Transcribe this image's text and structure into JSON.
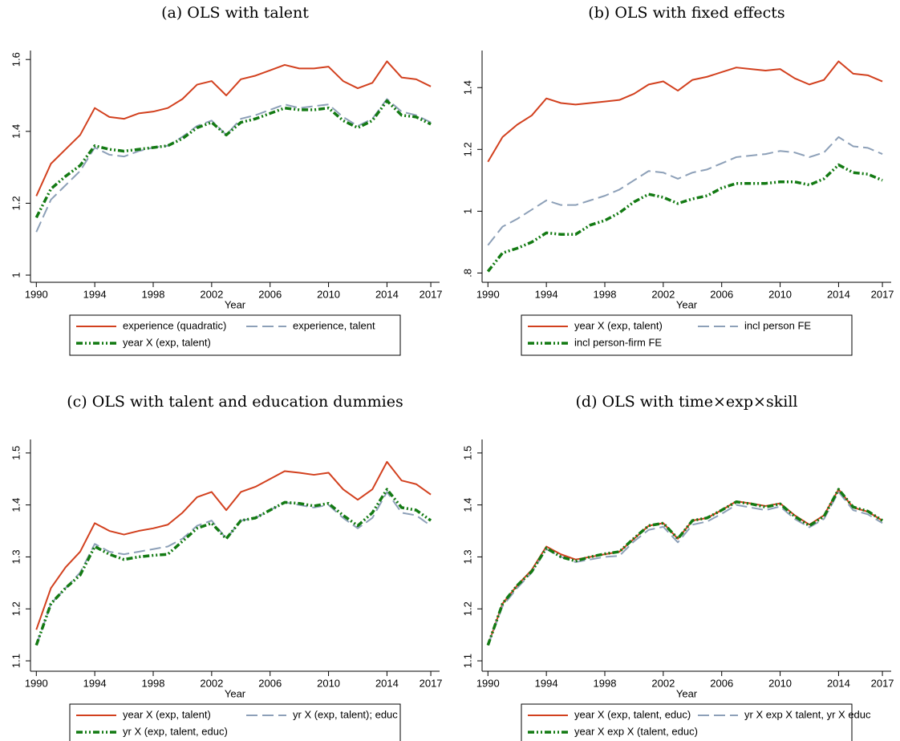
{
  "chart_data": [
    {
      "type": "line",
      "title": "(a) OLS with talent",
      "xlabel": "Year",
      "x": [
        1990,
        1991,
        1992,
        1993,
        1994,
        1995,
        1996,
        1997,
        1998,
        1999,
        2000,
        2001,
        2002,
        2003,
        2004,
        2005,
        2006,
        2007,
        2008,
        2009,
        2010,
        2011,
        2012,
        2013,
        2014,
        2015,
        2016,
        2017
      ],
      "xlim": [
        1989.6,
        2017.6
      ],
      "xticks": [
        1990,
        1994,
        1998,
        2002,
        2006,
        2010,
        2014,
        2017
      ],
      "ylim": [
        0.98,
        1.625
      ],
      "yticks": [
        1,
        1.2,
        1.4,
        1.6
      ],
      "series": [
        {
          "name": "experience (quadratic)",
          "color": "#d2401e",
          "values": [
            1.22,
            1.31,
            1.35,
            1.39,
            1.465,
            1.44,
            1.435,
            1.45,
            1.455,
            1.465,
            1.49,
            1.53,
            1.54,
            1.5,
            1.545,
            1.555,
            1.57,
            1.585,
            1.575,
            1.575,
            1.58,
            1.54,
            1.52,
            1.535,
            1.595,
            1.55,
            1.545,
            1.525
          ]
        },
        {
          "name": "experience, talent",
          "color": "#8da0b8",
          "values": [
            1.12,
            1.21,
            1.25,
            1.29,
            1.355,
            1.335,
            1.33,
            1.345,
            1.355,
            1.36,
            1.385,
            1.415,
            1.43,
            1.39,
            1.435,
            1.445,
            1.46,
            1.475,
            1.465,
            1.47,
            1.475,
            1.44,
            1.415,
            1.435,
            1.49,
            1.455,
            1.445,
            1.425
          ]
        },
        {
          "name": "year X (exp, talent)",
          "color": "#137a13",
          "values": [
            1.16,
            1.24,
            1.275,
            1.305,
            1.36,
            1.35,
            1.345,
            1.35,
            1.355,
            1.36,
            1.38,
            1.41,
            1.425,
            1.39,
            1.425,
            1.435,
            1.45,
            1.465,
            1.46,
            1.46,
            1.465,
            1.43,
            1.41,
            1.43,
            1.485,
            1.445,
            1.44,
            1.42
          ]
        }
      ]
    },
    {
      "type": "line",
      "title": "(b) OLS with fixed effects",
      "xlabel": "Year",
      "x": [
        1990,
        1991,
        1992,
        1993,
        1994,
        1995,
        1996,
        1997,
        1998,
        1999,
        2000,
        2001,
        2002,
        2003,
        2004,
        2005,
        2006,
        2007,
        2008,
        2009,
        2010,
        2011,
        2012,
        2013,
        2014,
        2015,
        2016,
        2017
      ],
      "xlim": [
        1989.6,
        2017.6
      ],
      "xticks": [
        1990,
        1994,
        1998,
        2002,
        2006,
        2010,
        2014,
        2017
      ],
      "ylim": [
        0.77,
        1.52
      ],
      "yticks": [
        {
          "value": 0.8,
          "label": ".8"
        },
        1,
        1.2,
        1.4
      ],
      "series": [
        {
          "name": "year X (exp, talent)",
          "color": "#d2401e",
          "values": [
            1.16,
            1.24,
            1.28,
            1.31,
            1.365,
            1.35,
            1.345,
            1.35,
            1.355,
            1.36,
            1.38,
            1.41,
            1.42,
            1.39,
            1.425,
            1.435,
            1.45,
            1.465,
            1.46,
            1.455,
            1.46,
            1.43,
            1.41,
            1.425,
            1.485,
            1.445,
            1.44,
            1.42
          ]
        },
        {
          "name": "incl person FE",
          "color": "#8da0b8",
          "values": [
            0.89,
            0.95,
            0.975,
            1.005,
            1.035,
            1.02,
            1.02,
            1.035,
            1.05,
            1.07,
            1.1,
            1.13,
            1.125,
            1.105,
            1.125,
            1.135,
            1.155,
            1.175,
            1.18,
            1.185,
            1.195,
            1.19,
            1.175,
            1.19,
            1.24,
            1.21,
            1.205,
            1.185
          ]
        },
        {
          "name": "incl person-firm FE",
          "color": "#137a13",
          "values": [
            0.805,
            0.865,
            0.88,
            0.9,
            0.93,
            0.925,
            0.925,
            0.955,
            0.97,
            0.995,
            1.03,
            1.055,
            1.045,
            1.025,
            1.04,
            1.05,
            1.075,
            1.09,
            1.09,
            1.09,
            1.095,
            1.095,
            1.085,
            1.105,
            1.15,
            1.125,
            1.12,
            1.1
          ]
        }
      ]
    },
    {
      "type": "line",
      "title": "(c) OLS with talent and education dummies",
      "xlabel": "Year",
      "x": [
        1990,
        1991,
        1992,
        1993,
        1994,
        1995,
        1996,
        1997,
        1998,
        1999,
        2000,
        2001,
        2002,
        2003,
        2004,
        2005,
        2006,
        2007,
        2008,
        2009,
        2010,
        2011,
        2012,
        2013,
        2014,
        2015,
        2016,
        2017
      ],
      "xlim": [
        1989.6,
        2017.6
      ],
      "xticks": [
        1990,
        1994,
        1998,
        2002,
        2006,
        2010,
        2014,
        2017
      ],
      "ylim": [
        1.08,
        1.526
      ],
      "yticks": [
        1.1,
        1.2,
        1.3,
        1.4,
        1.5
      ],
      "series": [
        {
          "name": "year X (exp, talent)",
          "color": "#d2401e",
          "values": [
            1.16,
            1.24,
            1.28,
            1.31,
            1.365,
            1.35,
            1.343,
            1.35,
            1.355,
            1.362,
            1.385,
            1.415,
            1.425,
            1.39,
            1.425,
            1.435,
            1.45,
            1.465,
            1.462,
            1.458,
            1.462,
            1.43,
            1.41,
            1.43,
            1.483,
            1.447,
            1.44,
            1.42
          ]
        },
        {
          "name": "yr X (exp, talent); educ",
          "color": "#8da0b8",
          "values": [
            1.13,
            1.21,
            1.24,
            1.27,
            1.325,
            1.31,
            1.305,
            1.31,
            1.315,
            1.32,
            1.335,
            1.36,
            1.37,
            1.335,
            1.37,
            1.375,
            1.39,
            1.405,
            1.4,
            1.395,
            1.4,
            1.375,
            1.355,
            1.375,
            1.425,
            1.385,
            1.38,
            1.36
          ]
        },
        {
          "name": "yr X (exp, talent, educ)",
          "color": "#137a13",
          "values": [
            1.13,
            1.21,
            1.24,
            1.265,
            1.32,
            1.305,
            1.295,
            1.3,
            1.303,
            1.305,
            1.33,
            1.355,
            1.365,
            1.335,
            1.37,
            1.375,
            1.39,
            1.405,
            1.403,
            1.398,
            1.403,
            1.38,
            1.36,
            1.385,
            1.43,
            1.395,
            1.39,
            1.37
          ]
        }
      ]
    },
    {
      "type": "line",
      "title": "(d) OLS with time×exp×skill",
      "xlabel": "Year",
      "x": [
        1990,
        1991,
        1992,
        1993,
        1994,
        1995,
        1996,
        1997,
        1998,
        1999,
        2000,
        2001,
        2002,
        2003,
        2004,
        2005,
        2006,
        2007,
        2008,
        2009,
        2010,
        2011,
        2012,
        2013,
        2014,
        2015,
        2016,
        2017
      ],
      "xlim": [
        1989.6,
        2017.6
      ],
      "xticks": [
        1990,
        1994,
        1998,
        2002,
        2006,
        2010,
        2014,
        2017
      ],
      "ylim": [
        1.08,
        1.526
      ],
      "yticks": [
        1.1,
        1.2,
        1.3,
        1.4,
        1.5
      ],
      "series": [
        {
          "name": "year X (exp, talent, educ)",
          "color": "#d2401e",
          "values": [
            1.13,
            1.21,
            1.245,
            1.275,
            1.32,
            1.305,
            1.295,
            1.3,
            1.305,
            1.31,
            1.335,
            1.36,
            1.365,
            1.335,
            1.37,
            1.375,
            1.39,
            1.407,
            1.403,
            1.398,
            1.403,
            1.38,
            1.362,
            1.38,
            1.43,
            1.395,
            1.387,
            1.37
          ]
        },
        {
          "name": "yr X exp X talent, yr X educ",
          "color": "#8da0b8",
          "values": [
            1.13,
            1.205,
            1.24,
            1.27,
            1.315,
            1.3,
            1.29,
            1.295,
            1.3,
            1.302,
            1.33,
            1.352,
            1.358,
            1.328,
            1.362,
            1.368,
            1.383,
            1.4,
            1.395,
            1.39,
            1.397,
            1.373,
            1.357,
            1.373,
            1.425,
            1.39,
            1.382,
            1.365
          ]
        },
        {
          "name": "year X exp X (talent, educ)",
          "color": "#137a13",
          "values": [
            1.13,
            1.21,
            1.245,
            1.272,
            1.317,
            1.3,
            1.292,
            1.3,
            1.306,
            1.31,
            1.336,
            1.36,
            1.365,
            1.335,
            1.37,
            1.375,
            1.39,
            1.406,
            1.402,
            1.396,
            1.402,
            1.378,
            1.36,
            1.378,
            1.43,
            1.396,
            1.388,
            1.37
          ]
        }
      ]
    }
  ]
}
